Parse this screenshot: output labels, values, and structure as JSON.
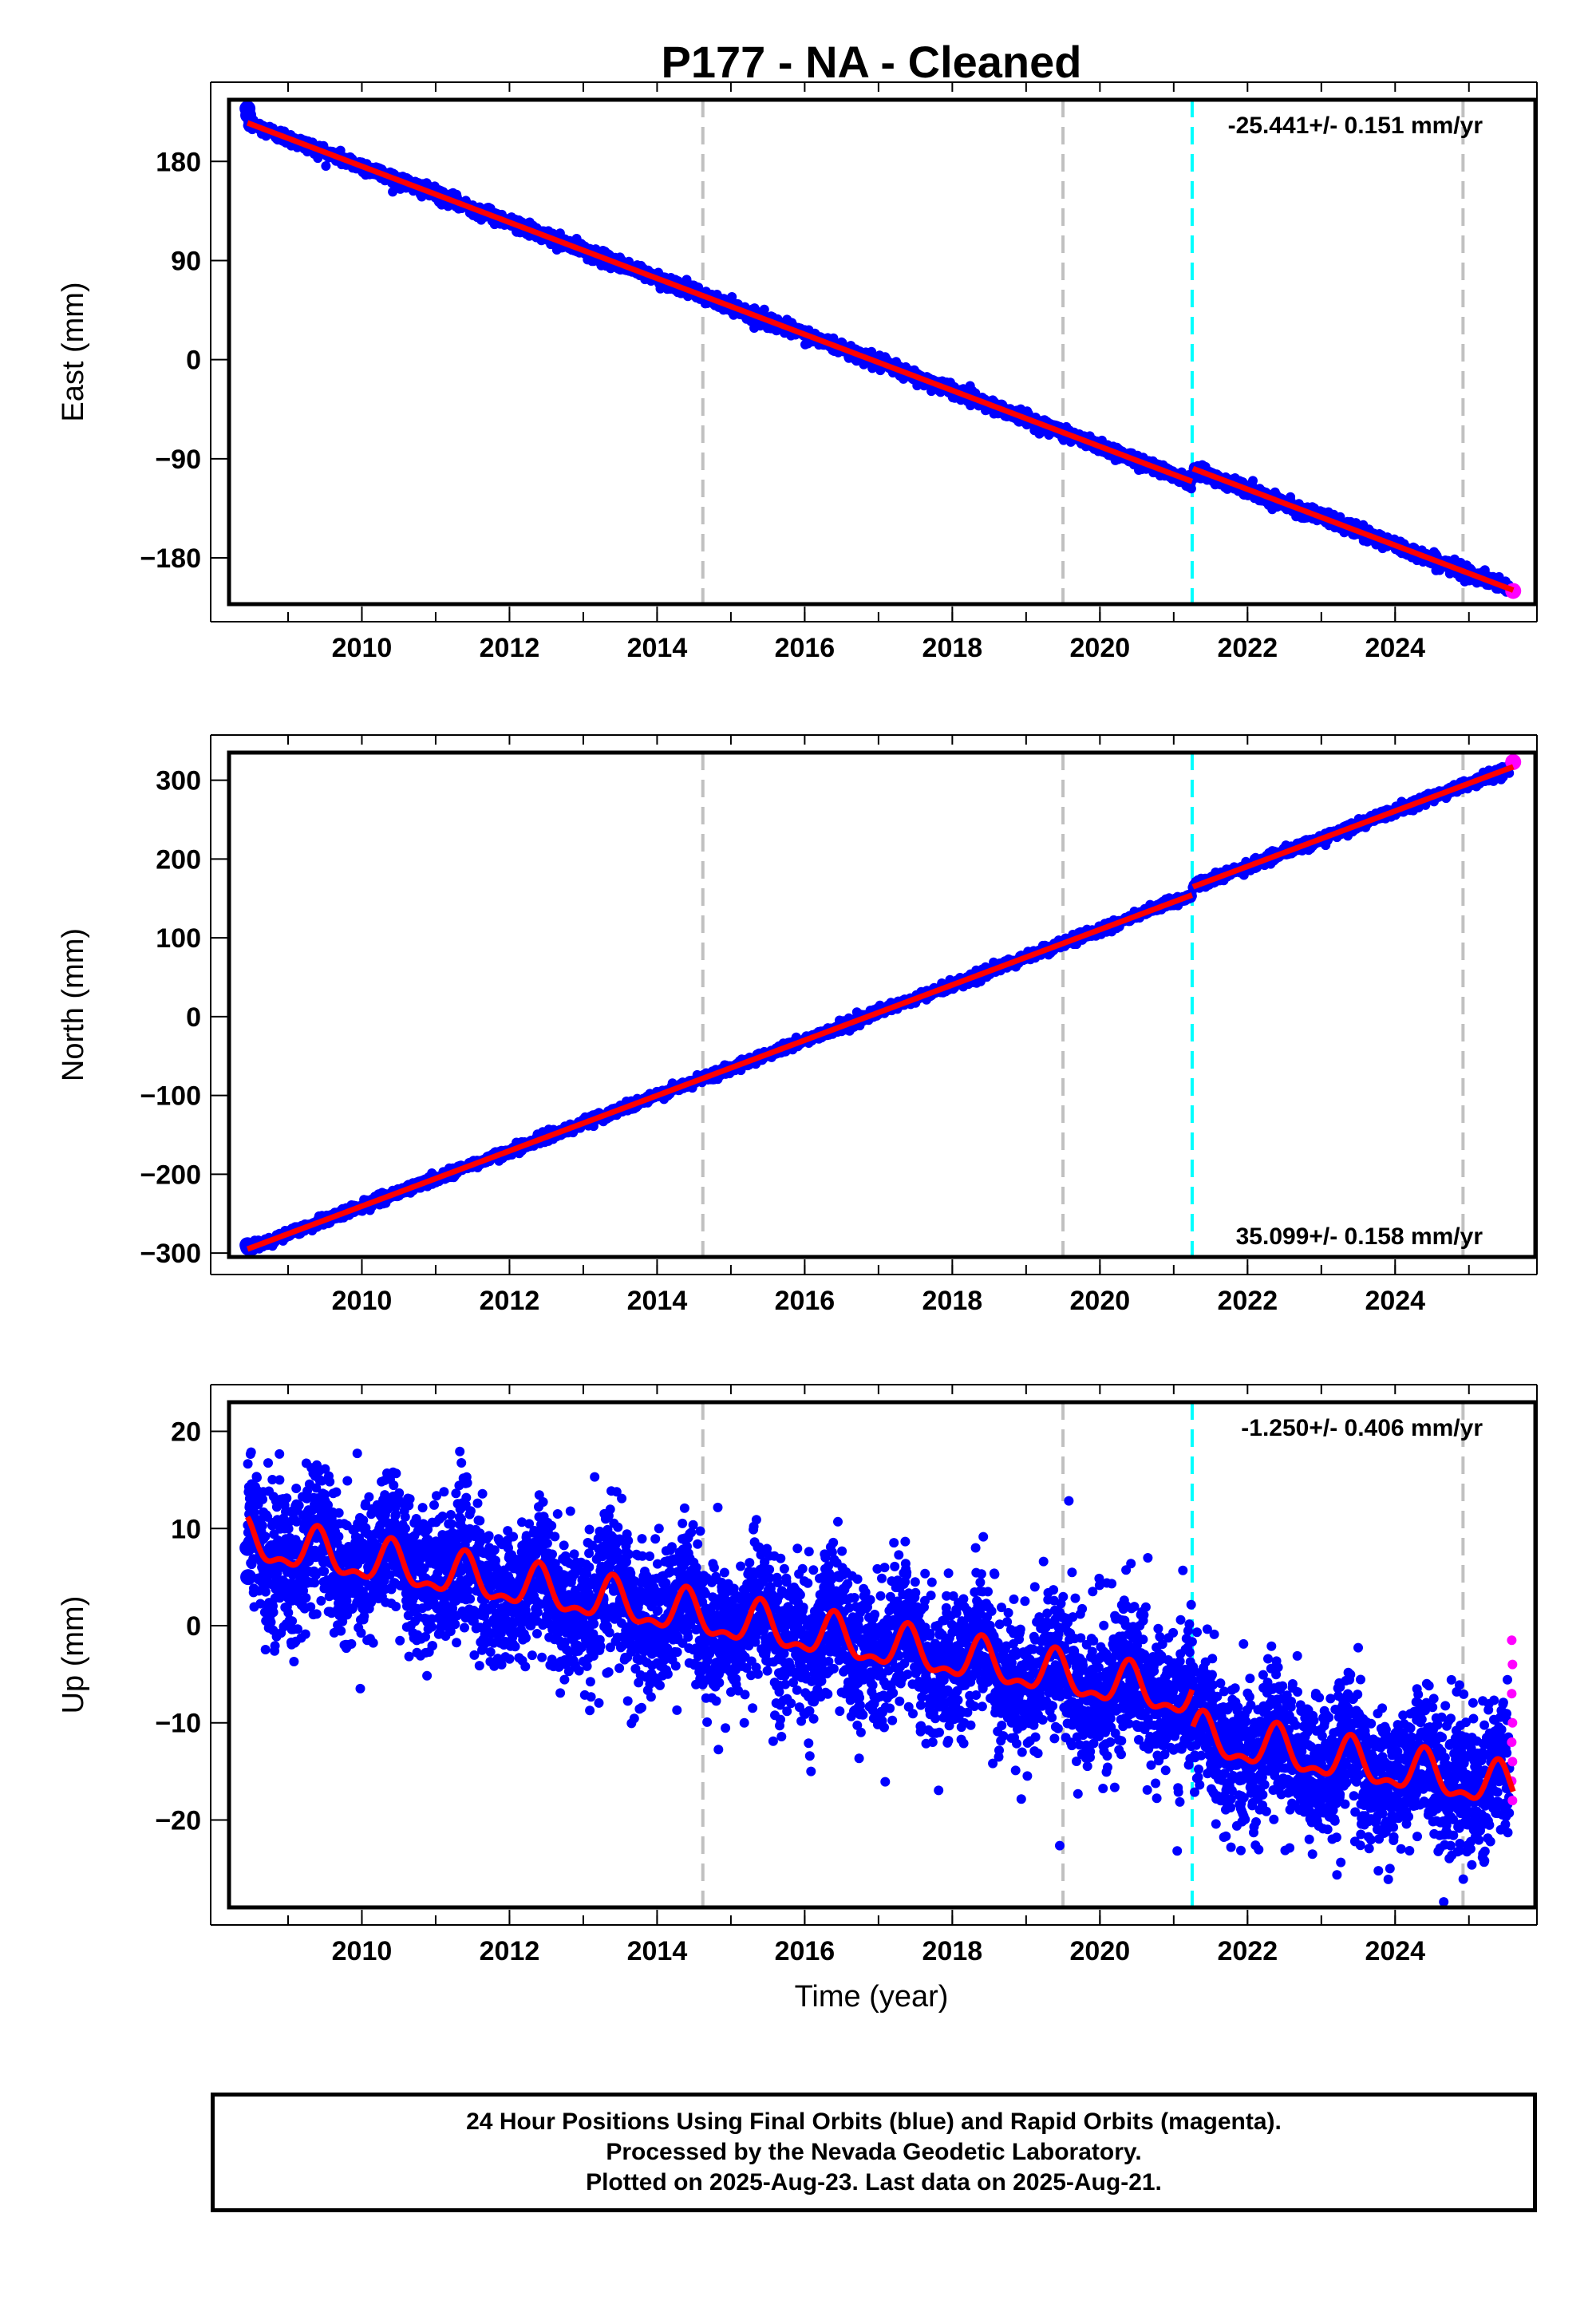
{
  "page": {
    "title": "P177  - NA - Cleaned",
    "footer": [
      "24 Hour Positions Using Final Orbits (blue) and Rapid Orbits (magenta).",
      "Processed by the Nevada Geodetic Laboratory.",
      "Plotted on 2025-Aug-23. Last data on 2025-Aug-21."
    ]
  },
  "colors": {
    "final_orbits": "#0000ff",
    "rapid_orbits": "#ff00ff",
    "model": "#ff0000",
    "event_dashed": "#c0c0c0",
    "equipment_change": "#00ffff"
  },
  "chart_data": [
    {
      "type": "scatter",
      "title": "P177  - NA - Cleaned",
      "xlabel": "",
      "ylabel": "East (mm)",
      "xlim": [
        2008.2,
        2025.9
      ],
      "ylim": [
        -222,
        236
      ],
      "xticks": [
        2010,
        2012,
        2014,
        2016,
        2018,
        2020,
        2022,
        2024
      ],
      "yticks": [
        -180,
        -90,
        0,
        90,
        180
      ],
      "ytick_labels": [
        "−180",
        "−90",
        "0",
        "90",
        "180"
      ],
      "rate_label": "-25.441+/- 0.151 mm/yr",
      "rate_label_position": "top-right",
      "model": {
        "rate": -25.441,
        "intercept_year": 2008.45,
        "intercept": 215,
        "offsets": [
          {
            "year": 2021.25,
            "jump": 12
          }
        ]
      },
      "scatter_noise": 3,
      "first_points": [
        228,
        222
      ],
      "last_value": -210,
      "grid": false
    },
    {
      "type": "scatter",
      "title": "",
      "xlabel": "",
      "ylabel": "North (mm)",
      "xlim": [
        2008.2,
        2025.9
      ],
      "ylim": [
        -305,
        335
      ],
      "xticks": [
        2010,
        2012,
        2014,
        2016,
        2018,
        2020,
        2022,
        2024
      ],
      "yticks": [
        -300,
        -200,
        -100,
        0,
        100,
        200,
        300
      ],
      "ytick_labels": [
        "−300",
        "−200",
        "−100",
        "0",
        "100",
        "200",
        "300"
      ],
      "rate_label": "35.099+/- 0.158 mm/yr",
      "rate_label_position": "bottom-right",
      "model": {
        "rate": 35.099,
        "intercept_year": 2008.45,
        "intercept": -295,
        "offsets": [
          {
            "year": 2021.25,
            "jump": 10
          }
        ]
      },
      "scatter_noise": 3,
      "first_points": [
        -290,
        -293
      ],
      "last_value": 323,
      "grid": false
    },
    {
      "type": "scatter",
      "title": "",
      "xlabel": "Time (year)",
      "ylabel": "Up (mm)",
      "xlim": [
        2008.2,
        2025.9
      ],
      "ylim": [
        -29,
        23
      ],
      "xticks": [
        2010,
        2012,
        2014,
        2016,
        2018,
        2020,
        2022,
        2024
      ],
      "yticks": [
        -20,
        -10,
        0,
        10,
        20
      ],
      "ytick_labels": [
        "−20",
        "−10",
        "0",
        "10",
        "20"
      ],
      "rate_label": "-1.250+/- 0.406 mm/yr",
      "rate_label_position": "top-right",
      "model": {
        "rate": -1.25,
        "intercept_year": 2008.45,
        "intercept": 8.5,
        "seasonal_amplitude": 2.7,
        "offsets": [
          {
            "year": 2021.25,
            "jump": -4
          }
        ]
      },
      "scatter_noise": 3.6,
      "first_points": [
        8,
        5
      ],
      "last_value": -13,
      "rapid_values": [
        -1.5,
        -4,
        -7,
        -10,
        -12,
        -14,
        -16,
        -18
      ],
      "grid": false
    }
  ],
  "event_lines": {
    "gray_dashed_years": [
      2014.62,
      2019.5,
      2024.92
    ],
    "cyan_dashed_year": 2021.25
  }
}
